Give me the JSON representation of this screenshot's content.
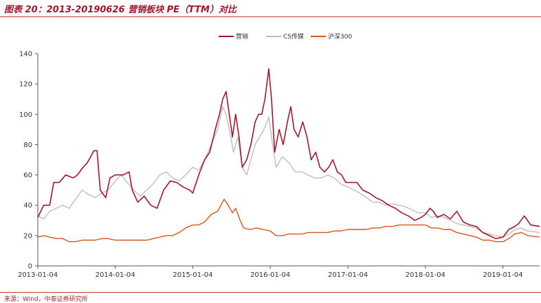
{
  "header": {
    "title": "图表 20：2013-20190626 营销板块 PE（TTM）对比"
  },
  "footer": {
    "source": "来源：Wind，中泰证券研究所"
  },
  "chart_data": {
    "type": "line",
    "title": "",
    "xlabel": "",
    "ylabel": "",
    "ylim": [
      0,
      140
    ],
    "yticks": [
      0,
      20,
      40,
      60,
      80,
      100,
      120,
      140
    ],
    "xlim": [
      "2013-01-04",
      "2019-06-26"
    ],
    "xticks": [
      "2013-01-04",
      "2014-01-04",
      "2015-01-04",
      "2016-01-04",
      "2017-01-04",
      "2018-01-04",
      "2019-01-04"
    ],
    "grid": false,
    "legend": "top-center",
    "series": [
      {
        "name": "营销",
        "color": "#a3162b",
        "points": [
          [
            "2013-01-04",
            32
          ],
          [
            "2013-02-01",
            40
          ],
          [
            "2013-03-01",
            40
          ],
          [
            "2013-03-20",
            55
          ],
          [
            "2013-04-15",
            55
          ],
          [
            "2013-05-15",
            60
          ],
          [
            "2013-06-20",
            58
          ],
          [
            "2013-07-10",
            60
          ],
          [
            "2013-08-05",
            65
          ],
          [
            "2013-08-25",
            68
          ],
          [
            "2013-09-10",
            72
          ],
          [
            "2013-09-25",
            76
          ],
          [
            "2013-10-10",
            76
          ],
          [
            "2013-10-25",
            50
          ],
          [
            "2013-11-20",
            45
          ],
          [
            "2013-12-10",
            58
          ],
          [
            "2014-01-04",
            60
          ],
          [
            "2014-02-10",
            60
          ],
          [
            "2014-03-10",
            62
          ],
          [
            "2014-03-25",
            50
          ],
          [
            "2014-04-20",
            42
          ],
          [
            "2014-05-20",
            46
          ],
          [
            "2014-06-20",
            40
          ],
          [
            "2014-07-20",
            38
          ],
          [
            "2014-08-20",
            50
          ],
          [
            "2014-09-20",
            56
          ],
          [
            "2014-10-20",
            55
          ],
          [
            "2014-11-20",
            52
          ],
          [
            "2014-12-20",
            50
          ],
          [
            "2015-01-04",
            48
          ],
          [
            "2015-02-01",
            60
          ],
          [
            "2015-03-01",
            70
          ],
          [
            "2015-03-25",
            75
          ],
          [
            "2015-04-20",
            90
          ],
          [
            "2015-05-10",
            100
          ],
          [
            "2015-05-25",
            110
          ],
          [
            "2015-06-10",
            115
          ],
          [
            "2015-06-25",
            100
          ],
          [
            "2015-07-10",
            85
          ],
          [
            "2015-07-25",
            100
          ],
          [
            "2015-08-10",
            85
          ],
          [
            "2015-08-25",
            65
          ],
          [
            "2015-09-15",
            70
          ],
          [
            "2015-10-05",
            80
          ],
          [
            "2015-10-25",
            95
          ],
          [
            "2015-11-10",
            100
          ],
          [
            "2015-11-25",
            100
          ],
          [
            "2015-12-10",
            110
          ],
          [
            "2015-12-28",
            130
          ],
          [
            "2016-01-10",
            110
          ],
          [
            "2016-01-25",
            75
          ],
          [
            "2016-02-15",
            90
          ],
          [
            "2016-03-05",
            80
          ],
          [
            "2016-03-25",
            95
          ],
          [
            "2016-04-10",
            105
          ],
          [
            "2016-04-25",
            90
          ],
          [
            "2016-05-15",
            85
          ],
          [
            "2016-06-05",
            95
          ],
          [
            "2016-06-25",
            85
          ],
          [
            "2016-07-15",
            70
          ],
          [
            "2016-08-05",
            75
          ],
          [
            "2016-08-25",
            65
          ],
          [
            "2016-09-15",
            62
          ],
          [
            "2016-10-05",
            65
          ],
          [
            "2016-10-25",
            70
          ],
          [
            "2016-11-15",
            62
          ],
          [
            "2016-12-05",
            60
          ],
          [
            "2016-12-25",
            55
          ],
          [
            "2017-01-15",
            55
          ],
          [
            "2017-02-15",
            55
          ],
          [
            "2017-03-15",
            50
          ],
          [
            "2017-04-15",
            48
          ],
          [
            "2017-05-15",
            45
          ],
          [
            "2017-06-15",
            43
          ],
          [
            "2017-07-15",
            40
          ],
          [
            "2017-08-15",
            38
          ],
          [
            "2017-09-15",
            35
          ],
          [
            "2017-10-15",
            33
          ],
          [
            "2017-11-15",
            30
          ],
          [
            "2017-12-15",
            32
          ],
          [
            "2018-01-04",
            34
          ],
          [
            "2018-01-25",
            38
          ],
          [
            "2018-02-10",
            36
          ],
          [
            "2018-03-01",
            32
          ],
          [
            "2018-04-01",
            34
          ],
          [
            "2018-05-01",
            31
          ],
          [
            "2018-06-01",
            36
          ],
          [
            "2018-07-01",
            29
          ],
          [
            "2018-08-01",
            27
          ],
          [
            "2018-09-01",
            26
          ],
          [
            "2018-10-01",
            22
          ],
          [
            "2018-11-01",
            20
          ],
          [
            "2018-12-01",
            18
          ],
          [
            "2019-01-04",
            19
          ],
          [
            "2019-02-01",
            24
          ],
          [
            "2019-03-01",
            26
          ],
          [
            "2019-03-20",
            28
          ],
          [
            "2019-04-15",
            33
          ],
          [
            "2019-05-15",
            27
          ],
          [
            "2019-06-26",
            26
          ]
        ]
      },
      {
        "name": "CS传媒",
        "color": "#bdbdbd",
        "points": [
          [
            "2013-01-04",
            33
          ],
          [
            "2013-02-01",
            31
          ],
          [
            "2013-03-01",
            36
          ],
          [
            "2013-04-01",
            38
          ],
          [
            "2013-05-01",
            40
          ],
          [
            "2013-06-01",
            38
          ],
          [
            "2013-07-01",
            44
          ],
          [
            "2013-08-01",
            50
          ],
          [
            "2013-09-01",
            47
          ],
          [
            "2013-10-01",
            45
          ],
          [
            "2013-11-01",
            48
          ],
          [
            "2013-12-01",
            50
          ],
          [
            "2014-01-04",
            56
          ],
          [
            "2014-02-01",
            60
          ],
          [
            "2014-03-01",
            55
          ],
          [
            "2014-04-01",
            50
          ],
          [
            "2014-05-01",
            46
          ],
          [
            "2014-06-01",
            50
          ],
          [
            "2014-07-01",
            54
          ],
          [
            "2014-08-01",
            60
          ],
          [
            "2014-09-01",
            62
          ],
          [
            "2014-10-01",
            58
          ],
          [
            "2014-11-01",
            56
          ],
          [
            "2014-12-01",
            60
          ],
          [
            "2015-01-04",
            65
          ],
          [
            "2015-02-01",
            63
          ],
          [
            "2015-03-01",
            70
          ],
          [
            "2015-04-01",
            80
          ],
          [
            "2015-05-01",
            90
          ],
          [
            "2015-05-25",
            105
          ],
          [
            "2015-06-10",
            100
          ],
          [
            "2015-06-25",
            90
          ],
          [
            "2015-07-15",
            75
          ],
          [
            "2015-08-05",
            85
          ],
          [
            "2015-08-25",
            65
          ],
          [
            "2015-09-15",
            60
          ],
          [
            "2015-10-05",
            70
          ],
          [
            "2015-10-25",
            80
          ],
          [
            "2015-11-15",
            85
          ],
          [
            "2015-12-05",
            90
          ],
          [
            "2015-12-28",
            98
          ],
          [
            "2016-01-15",
            80
          ],
          [
            "2016-02-01",
            65
          ],
          [
            "2016-03-01",
            72
          ],
          [
            "2016-04-01",
            68
          ],
          [
            "2016-05-01",
            62
          ],
          [
            "2016-06-01",
            62
          ],
          [
            "2016-07-01",
            60
          ],
          [
            "2016-08-01",
            58
          ],
          [
            "2016-09-01",
            58
          ],
          [
            "2016-10-01",
            60
          ],
          [
            "2016-11-01",
            58
          ],
          [
            "2016-12-01",
            54
          ],
          [
            "2017-01-04",
            52
          ],
          [
            "2017-02-01",
            50
          ],
          [
            "2017-03-01",
            48
          ],
          [
            "2017-04-01",
            45
          ],
          [
            "2017-05-01",
            42
          ],
          [
            "2017-06-01",
            42
          ],
          [
            "2017-07-01",
            40
          ],
          [
            "2017-08-01",
            41
          ],
          [
            "2017-09-01",
            40
          ],
          [
            "2017-10-01",
            39
          ],
          [
            "2017-11-01",
            37
          ],
          [
            "2017-12-01",
            35
          ],
          [
            "2018-01-04",
            35
          ],
          [
            "2018-02-01",
            32
          ],
          [
            "2018-03-01",
            33
          ],
          [
            "2018-04-01",
            32
          ],
          [
            "2018-05-01",
            30
          ],
          [
            "2018-06-01",
            28
          ],
          [
            "2018-07-01",
            27
          ],
          [
            "2018-08-01",
            26
          ],
          [
            "2018-09-01",
            25
          ],
          [
            "2018-10-01",
            22
          ],
          [
            "2018-11-01",
            21
          ],
          [
            "2018-12-01",
            20
          ],
          [
            "2019-01-04",
            19
          ],
          [
            "2019-02-01",
            21
          ],
          [
            "2019-03-01",
            24
          ],
          [
            "2019-04-01",
            25
          ],
          [
            "2019-05-01",
            23
          ],
          [
            "2019-06-26",
            22
          ]
        ]
      },
      {
        "name": "沪深300",
        "color": "#d4561c",
        "points": [
          [
            "2013-01-04",
            19
          ],
          [
            "2013-02-01",
            20
          ],
          [
            "2013-03-01",
            19
          ],
          [
            "2013-04-01",
            18
          ],
          [
            "2013-05-01",
            18
          ],
          [
            "2013-06-01",
            16
          ],
          [
            "2013-07-01",
            16
          ],
          [
            "2013-08-01",
            17
          ],
          [
            "2013-09-01",
            17
          ],
          [
            "2013-10-01",
            17
          ],
          [
            "2013-11-01",
            18
          ],
          [
            "2013-12-01",
            18
          ],
          [
            "2014-01-04",
            17
          ],
          [
            "2014-02-01",
            17
          ],
          [
            "2014-03-01",
            17
          ],
          [
            "2014-04-01",
            17
          ],
          [
            "2014-05-01",
            17
          ],
          [
            "2014-06-01",
            17
          ],
          [
            "2014-07-01",
            18
          ],
          [
            "2014-08-01",
            19
          ],
          [
            "2014-09-01",
            20
          ],
          [
            "2014-10-01",
            20
          ],
          [
            "2014-11-01",
            22
          ],
          [
            "2014-12-01",
            25
          ],
          [
            "2015-01-04",
            27
          ],
          [
            "2015-02-01",
            27
          ],
          [
            "2015-03-01",
            29
          ],
          [
            "2015-04-01",
            34
          ],
          [
            "2015-05-01",
            36
          ],
          [
            "2015-06-01",
            44
          ],
          [
            "2015-06-20",
            40
          ],
          [
            "2015-07-10",
            35
          ],
          [
            "2015-07-25",
            38
          ],
          [
            "2015-08-15",
            30
          ],
          [
            "2015-09-01",
            25
          ],
          [
            "2015-10-01",
            24
          ],
          [
            "2015-11-01",
            25
          ],
          [
            "2015-12-01",
            24
          ],
          [
            "2016-01-04",
            23
          ],
          [
            "2016-02-01",
            20
          ],
          [
            "2016-03-01",
            20
          ],
          [
            "2016-04-01",
            21
          ],
          [
            "2016-05-01",
            21
          ],
          [
            "2016-06-01",
            21
          ],
          [
            "2016-07-01",
            22
          ],
          [
            "2016-08-01",
            22
          ],
          [
            "2016-09-01",
            22
          ],
          [
            "2016-10-01",
            22
          ],
          [
            "2016-11-01",
            23
          ],
          [
            "2016-12-01",
            23
          ],
          [
            "2017-01-04",
            24
          ],
          [
            "2017-02-01",
            24
          ],
          [
            "2017-03-01",
            24
          ],
          [
            "2017-04-01",
            24
          ],
          [
            "2017-05-01",
            25
          ],
          [
            "2017-06-01",
            25
          ],
          [
            "2017-07-01",
            26
          ],
          [
            "2017-08-01",
            26
          ],
          [
            "2017-09-01",
            27
          ],
          [
            "2017-10-01",
            27
          ],
          [
            "2017-11-01",
            27
          ],
          [
            "2017-12-01",
            27
          ],
          [
            "2018-01-04",
            27
          ],
          [
            "2018-02-01",
            25
          ],
          [
            "2018-03-01",
            25
          ],
          [
            "2018-04-01",
            24
          ],
          [
            "2018-05-01",
            24
          ],
          [
            "2018-06-01",
            22
          ],
          [
            "2018-07-01",
            21
          ],
          [
            "2018-08-01",
            20
          ],
          [
            "2018-09-01",
            19
          ],
          [
            "2018-10-01",
            17
          ],
          [
            "2018-11-01",
            17
          ],
          [
            "2018-12-01",
            16
          ],
          [
            "2019-01-04",
            16
          ],
          [
            "2019-02-01",
            18
          ],
          [
            "2019-03-01",
            21
          ],
          [
            "2019-04-01",
            22
          ],
          [
            "2019-05-01",
            20
          ],
          [
            "2019-06-26",
            19
          ]
        ]
      }
    ]
  }
}
